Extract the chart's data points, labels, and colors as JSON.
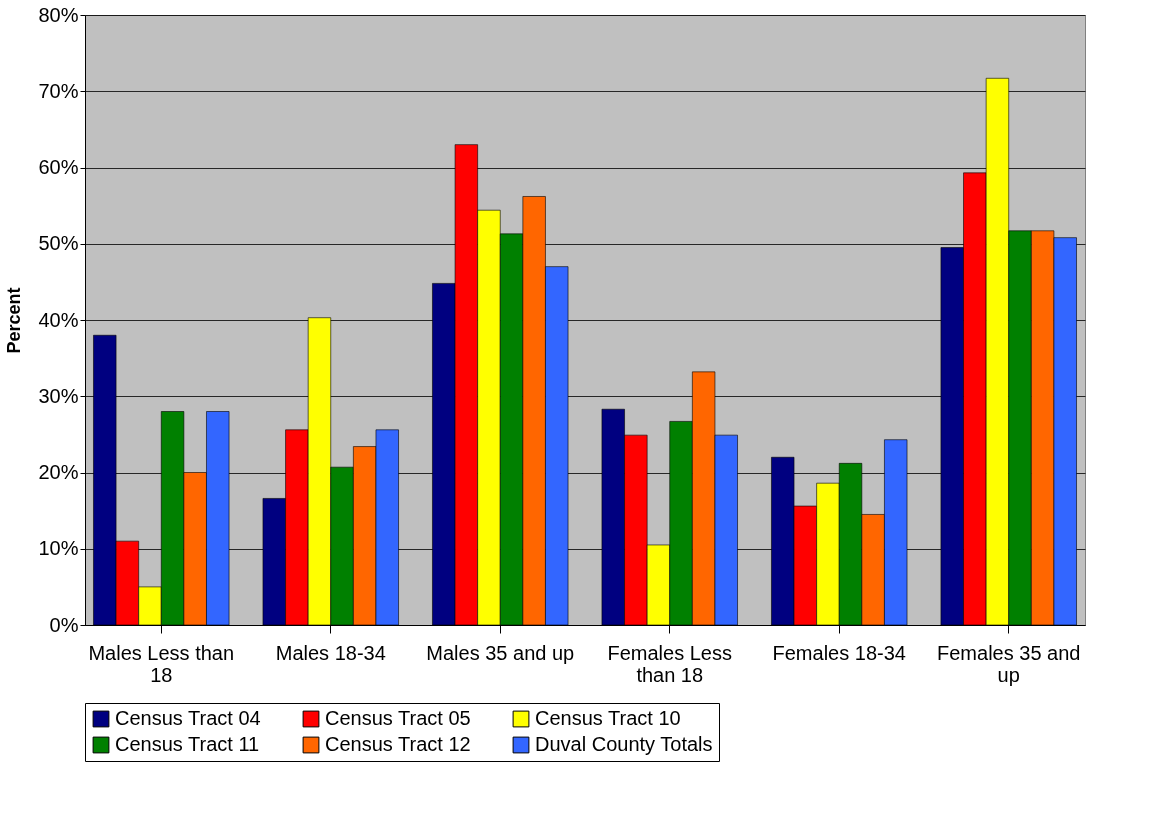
{
  "chart_data": {
    "type": "bar",
    "ylabel": "Percent",
    "categories": [
      "Males Less than 18",
      "Males 18-34",
      "Males 35 and up",
      "Females Less than 18",
      "Females 18-34",
      "Females 35 and up"
    ],
    "series": [
      {
        "name": "Census Tract 04",
        "color": "#000080",
        "values": [
          38,
          16.6,
          44.8,
          28.3,
          22,
          49.5
        ]
      },
      {
        "name": "Census Tract 05",
        "color": "#ff0000",
        "values": [
          11,
          25.6,
          63,
          24.9,
          15.6,
          59.3
        ]
      },
      {
        "name": "Census Tract 10",
        "color": "#ffff00",
        "values": [
          5,
          40.3,
          54.4,
          10.5,
          18.6,
          71.7
        ]
      },
      {
        "name": "Census Tract 11",
        "color": "#008000",
        "values": [
          28,
          20.7,
          51.3,
          26.7,
          21.2,
          51.7
        ]
      },
      {
        "name": "Census Tract 12",
        "color": "#ff6600",
        "values": [
          20,
          23.4,
          56.2,
          33.2,
          14.5,
          51.7
        ]
      },
      {
        "name": "Duval County Totals",
        "color": "#3366ff",
        "values": [
          28,
          25.6,
          47,
          24.9,
          24.3,
          50.8
        ]
      }
    ],
    "ylim": [
      0,
      80
    ],
    "yticks": [
      {
        "value": 0,
        "label": "0%"
      },
      {
        "value": 10,
        "label": "10%"
      },
      {
        "value": 20,
        "label": "20%"
      },
      {
        "value": 30,
        "label": "30%"
      },
      {
        "value": 40,
        "label": "40%"
      },
      {
        "value": 50,
        "label": "50%"
      },
      {
        "value": 60,
        "label": "60%"
      },
      {
        "value": 70,
        "label": "70%"
      },
      {
        "value": 80,
        "label": "80%"
      }
    ],
    "grid": "y",
    "legend": "bottom"
  }
}
